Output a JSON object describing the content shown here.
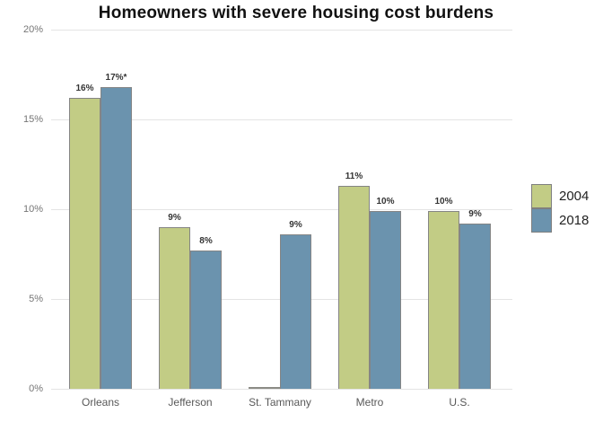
{
  "title": "Homeowners with severe housing cost burdens",
  "colors": {
    "series_2004": "#c2cc85",
    "series_2018": "#6b93ae",
    "bar_border": "#858585",
    "zero_bar": "#8c8c86",
    "gridline": "#e4e4e4",
    "axis_text": "#757575",
    "category_text": "#595959",
    "value_label_text": "#333333",
    "title_text": "#111111"
  },
  "chart_data": {
    "type": "bar",
    "title": "Homeowners with severe housing cost burdens",
    "categories": [
      "Orleans",
      "Jefferson",
      "St. Tammany",
      "Metro",
      "U.S."
    ],
    "series": [
      {
        "name": "2004",
        "color": "#c2cc85",
        "values": [
          16.2,
          9.0,
          0,
          11.3,
          9.9
        ],
        "labels": [
          "16%",
          "9%",
          "",
          "11%",
          "10%"
        ]
      },
      {
        "name": "2018",
        "color": "#6b93ae",
        "values": [
          16.8,
          7.7,
          8.6,
          9.9,
          9.2
        ],
        "labels": [
          "17%*",
          "8%",
          "9%",
          "10%",
          "9%"
        ]
      }
    ],
    "xlabel": "",
    "ylabel": "",
    "ylim": [
      0,
      20
    ],
    "yticks": [
      "0%",
      "5%",
      "10%",
      "15%",
      "20%"
    ],
    "grid": true,
    "legend_position": "right"
  },
  "legend": {
    "items": [
      {
        "label": "2004",
        "color": "#c2cc85"
      },
      {
        "label": "2018",
        "color": "#6b93ae"
      }
    ]
  }
}
